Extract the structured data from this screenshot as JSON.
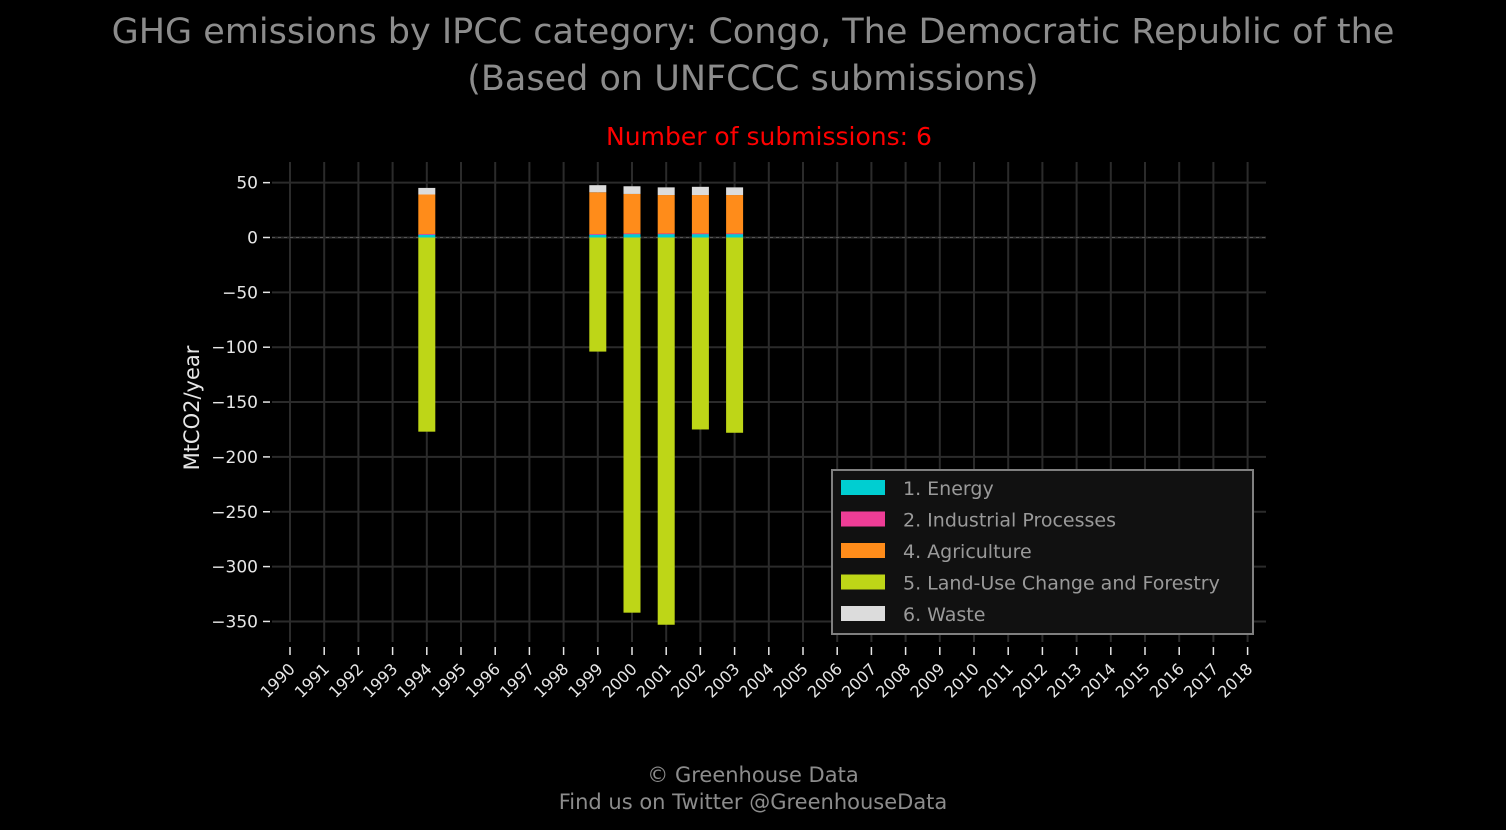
{
  "title_line1": "GHG emissions by IPCC category: Congo, The Democratic Republic of the",
  "title_line2": "(Based on UNFCCC submissions)",
  "subtitle": "Number of submissions: 6",
  "footer_line1": "© Greenhouse Data",
  "footer_line2": "Find us on Twitter @GreenhouseData",
  "colors": {
    "background": "#000000",
    "grid": "#2b2b2b",
    "axis_text": "#e6e6e6",
    "subtitle": "#ff0000",
    "title": "#8c8c8c"
  },
  "chart_data": {
    "type": "bar",
    "stacked": true,
    "ylabel": "MtCO2/year",
    "ylim": [
      -370,
      67
    ],
    "yticks": [
      50,
      0,
      -50,
      -100,
      -150,
      -200,
      -250,
      -300,
      -350
    ],
    "ytick_labels": [
      "50",
      "0",
      "−50",
      "−100",
      "−150",
      "−200",
      "−250",
      "−300",
      "−350"
    ],
    "grid": true,
    "legend_position": "bottom-right",
    "categories": [
      "1990",
      "1991",
      "1992",
      "1993",
      "1994",
      "1995",
      "1996",
      "1997",
      "1998",
      "1999",
      "2000",
      "2001",
      "2002",
      "2003",
      "2004",
      "2005",
      "2006",
      "2007",
      "2008",
      "2009",
      "2010",
      "2011",
      "2012",
      "2013",
      "2014",
      "2015",
      "2016",
      "2017",
      "2018"
    ],
    "series": [
      {
        "name": "1. Energy",
        "color": "#00ced1",
        "values": [
          null,
          null,
          null,
          null,
          3,
          null,
          null,
          null,
          null,
          3,
          3.5,
          3.5,
          3.5,
          3.5,
          null,
          null,
          null,
          null,
          null,
          null,
          null,
          null,
          null,
          null,
          null,
          null,
          null,
          null,
          null
        ]
      },
      {
        "name": "2. Industrial Processes",
        "color": "#ee3d96",
        "values": [
          null,
          null,
          null,
          null,
          0.2,
          null,
          null,
          null,
          null,
          0.2,
          0.2,
          0.2,
          0.2,
          0.2,
          null,
          null,
          null,
          null,
          null,
          null,
          null,
          null,
          null,
          null,
          null,
          null,
          null,
          null,
          null
        ]
      },
      {
        "name": "4. Agriculture",
        "color": "#ff8c1a",
        "values": [
          null,
          null,
          null,
          null,
          36,
          null,
          null,
          null,
          null,
          38,
          36,
          35,
          35,
          35,
          null,
          null,
          null,
          null,
          null,
          null,
          null,
          null,
          null,
          null,
          null,
          null,
          null,
          null,
          null
        ]
      },
      {
        "name": "5. Land-Use Change and Forestry",
        "color": "#bed617",
        "values": [
          null,
          null,
          null,
          null,
          -177,
          null,
          null,
          null,
          null,
          -104,
          -342,
          -353,
          -175,
          -178,
          null,
          null,
          null,
          null,
          null,
          null,
          null,
          null,
          null,
          null,
          null,
          null,
          null,
          null,
          null
        ]
      },
      {
        "name": "6. Waste",
        "color": "#dcdcdc",
        "values": [
          null,
          null,
          null,
          null,
          6,
          null,
          null,
          null,
          null,
          6.5,
          7,
          7,
          7.5,
          7,
          null,
          null,
          null,
          null,
          null,
          null,
          null,
          null,
          null,
          null,
          null,
          null,
          null,
          null,
          null
        ]
      }
    ]
  }
}
